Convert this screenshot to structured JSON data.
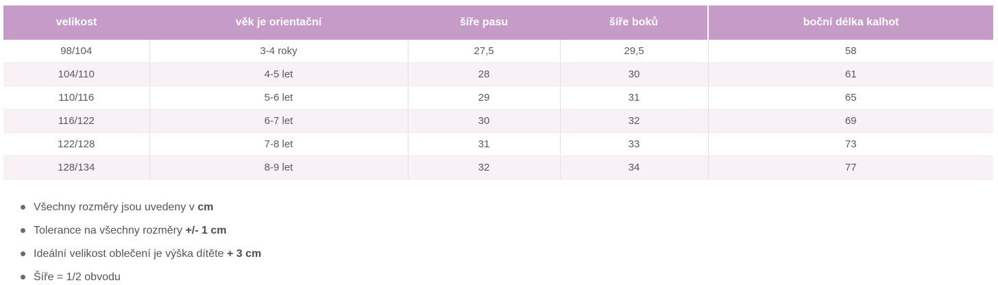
{
  "table": {
    "columns": [
      {
        "label": "velikost"
      },
      {
        "label": "věk je orientační"
      },
      {
        "label": "šíře pasu"
      },
      {
        "label": "šíře boků"
      },
      {
        "label": "boční délka kalhot"
      }
    ],
    "rows": [
      {
        "velikost": "98/104",
        "vek": "3-4 roky",
        "pas": "27,5",
        "boky": "29,5",
        "delka": "58"
      },
      {
        "velikost": "104/110",
        "vek": "4-5 let",
        "pas": "28",
        "boky": "30",
        "delka": "61"
      },
      {
        "velikost": "110/116",
        "vek": "5-6 let",
        "pas": "29",
        "boky": "31",
        "delka": "65"
      },
      {
        "velikost": "116/122",
        "vek": "6-7 let",
        "pas": "30",
        "boky": "32",
        "delka": "69"
      },
      {
        "velikost": "122/128",
        "vek": "7-8 let",
        "pas": "31",
        "boky": "33",
        "delka": "73"
      },
      {
        "velikost": "128/134",
        "vek": "8-9 let",
        "pas": "32",
        "boky": "34",
        "delka": "77"
      }
    ]
  },
  "notes": [
    {
      "text": "Všechny rozměry jsou uvedeny v ",
      "bold": "cm"
    },
    {
      "text": "Tolerance na všechny rozměry ",
      "bold": "+/- 1 cm"
    },
    {
      "text": "Ideální velikost oblečení je výška dítěte ",
      "bold": "+ 3 cm"
    },
    {
      "text": "Šíře = 1/2 obvodu",
      "bold": ""
    }
  ],
  "colors": {
    "header_bg": "#c69bc7",
    "header_text": "#ffffff",
    "row_alt_bg": "#f8f2f7",
    "cell_border_vertical": "#e9dcea",
    "cell_border_horizontal": "#f1e8f1",
    "body_text": "#595959",
    "note_text": "#555555"
  }
}
